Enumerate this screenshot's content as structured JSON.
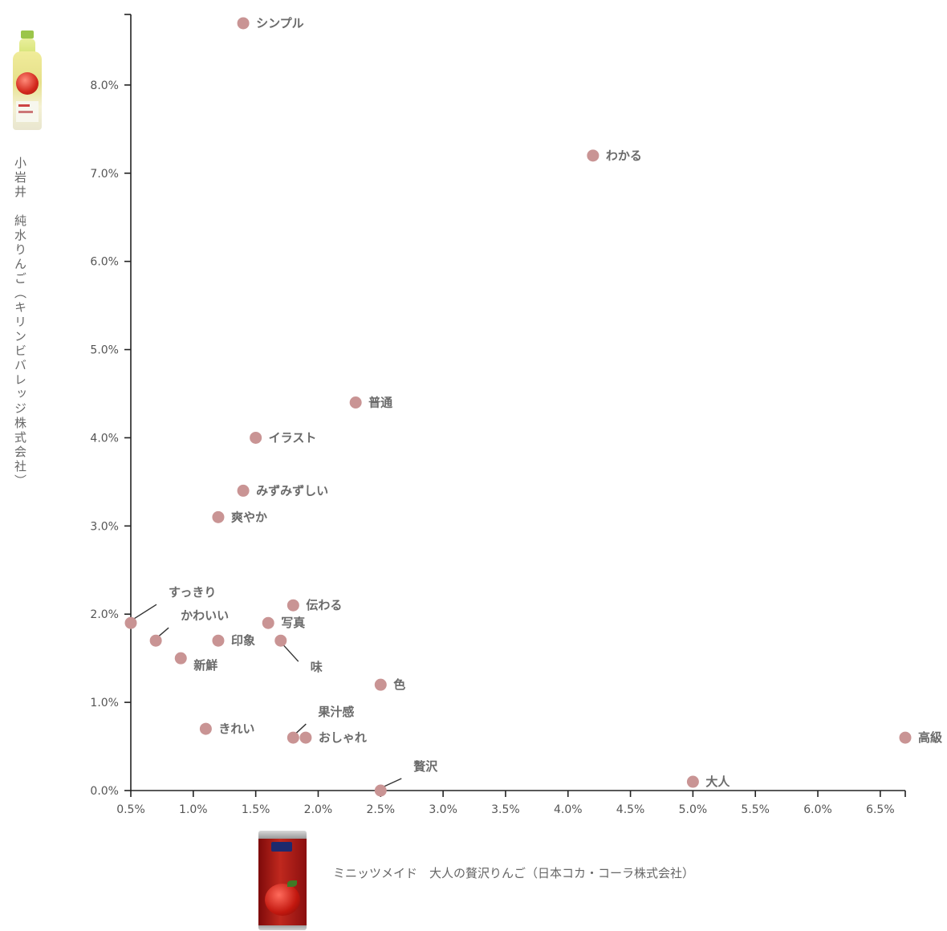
{
  "chart_data": {
    "type": "scatter",
    "title": "",
    "xlabel": "ミニッツメイド　大人の贅沢りんご（日本コカ・コーラ株式会社）",
    "ylabel": "小岩井　純水りんご（キリンビバレッジ株式会社）",
    "xlim": [
      0.5,
      6.7
    ],
    "ylim": [
      0,
      8.8
    ],
    "x_ticks": [
      "0.5%",
      "1.0%",
      "1.5%",
      "2.0%",
      "2.5%",
      "3.0%",
      "3.5%",
      "4.0%",
      "4.5%",
      "5.0%",
      "5.5%",
      "6.0%",
      "6.5%"
    ],
    "y_ticks": [
      "0.0%",
      "1.0%",
      "2.0%",
      "3.0%",
      "4.0%",
      "5.0%",
      "6.0%",
      "7.0%",
      "8.0%"
    ],
    "grid": false,
    "marker_color": "#c99494",
    "points": [
      {
        "label": "シンプル",
        "x": 1.4,
        "y": 8.7
      },
      {
        "label": "わかる",
        "x": 4.2,
        "y": 7.2
      },
      {
        "label": "普通",
        "x": 2.3,
        "y": 4.4
      },
      {
        "label": "イラスト",
        "x": 1.5,
        "y": 4.0
      },
      {
        "label": "みずみずしい",
        "x": 1.4,
        "y": 3.4
      },
      {
        "label": "爽やか",
        "x": 1.2,
        "y": 3.1
      },
      {
        "label": "すっきり",
        "x": 0.5,
        "y": 1.9
      },
      {
        "label": "かわいい",
        "x": 0.7,
        "y": 1.7
      },
      {
        "label": "伝わる",
        "x": 1.8,
        "y": 2.1
      },
      {
        "label": "写真",
        "x": 1.6,
        "y": 1.9
      },
      {
        "label": "印象",
        "x": 1.2,
        "y": 1.7
      },
      {
        "label": "味",
        "x": 1.7,
        "y": 1.7
      },
      {
        "label": "新鮮",
        "x": 0.9,
        "y": 1.5
      },
      {
        "label": "色",
        "x": 2.5,
        "y": 1.2
      },
      {
        "label": "果汁感",
        "x": 1.8,
        "y": 0.6
      },
      {
        "label": "おしゃれ",
        "x": 1.9,
        "y": 0.6
      },
      {
        "label": "きれい",
        "x": 1.1,
        "y": 0.7
      },
      {
        "label": "贅沢",
        "x": 2.5,
        "y": 0.0
      },
      {
        "label": "大人",
        "x": 5.0,
        "y": 0.1
      },
      {
        "label": "高級",
        "x": 6.7,
        "y": 0.6
      }
    ]
  },
  "images": {
    "y_product": "kirin-koiwai-apple-bottle-image",
    "x_product": "minute-maid-otona-apple-can-image"
  }
}
